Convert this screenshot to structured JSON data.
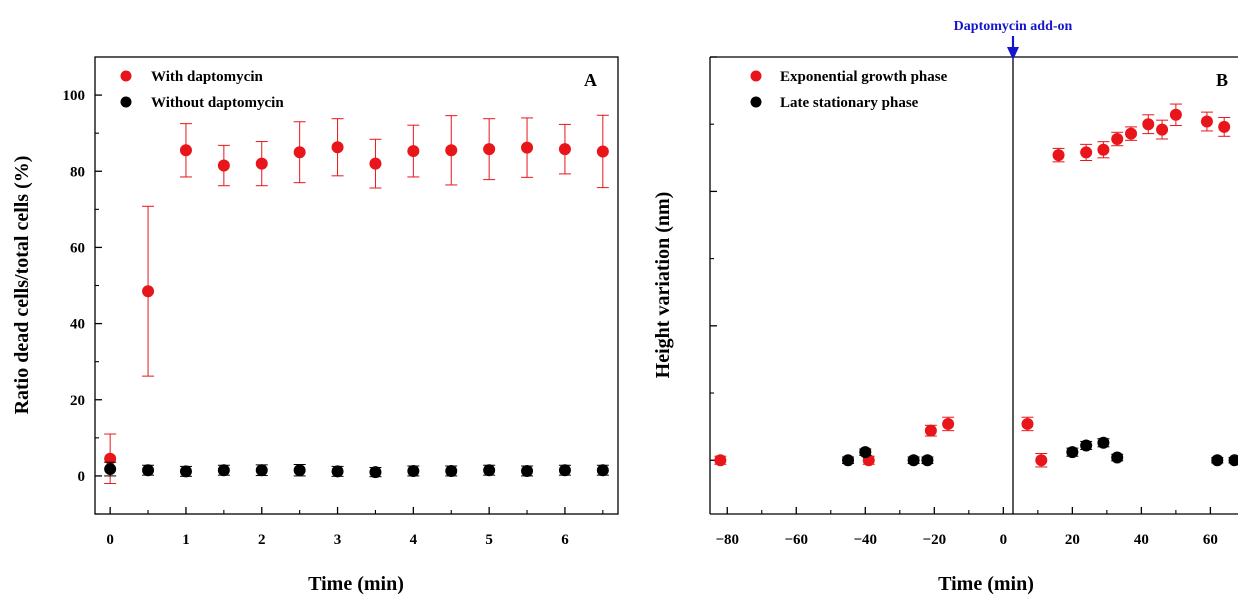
{
  "chart_data": [
    {
      "type": "scatter",
      "panel_label": "A",
      "xlabel": "Time (min)",
      "ylabel": "Ratio dead cells/total cells (%)",
      "xlim": [
        -0.2,
        6.7
      ],
      "ylim": [
        -10,
        110
      ],
      "xticks": [
        0,
        1,
        2,
        3,
        4,
        5,
        6
      ],
      "yticks": [
        0,
        20,
        40,
        60,
        80,
        100
      ],
      "legend_position": "top-left",
      "grid": false,
      "series": [
        {
          "name": "With daptomycin",
          "color": "#e8151b",
          "x": [
            0,
            0.5,
            1,
            1.5,
            2,
            2.5,
            3,
            3.5,
            4,
            4.5,
            5,
            5.5,
            6,
            6.5
          ],
          "y": [
            4.5,
            48.5,
            85.5,
            81.5,
            82,
            85,
            86.3,
            82,
            85.3,
            85.5,
            85.8,
            86.2,
            85.8,
            85.2
          ],
          "err": [
            6.5,
            22.3,
            7,
            5.3,
            5.8,
            8,
            7.5,
            6.4,
            6.8,
            9.1,
            8,
            7.8,
            6.5,
            9.5
          ]
        },
        {
          "name": "Without daptomycin",
          "color": "#000000",
          "x": [
            0,
            0.5,
            1,
            1.5,
            2,
            2.5,
            3,
            3.5,
            4,
            4.5,
            5,
            5.5,
            6,
            6.5
          ],
          "y": [
            1.8,
            1.5,
            1.2,
            1.5,
            1.5,
            1.5,
            1.2,
            1,
            1.3,
            1.3,
            1.5,
            1.3,
            1.5,
            1.5
          ],
          "err": [
            1.8,
            1.3,
            1.3,
            1.3,
            1.4,
            1.5,
            1.3,
            1.2,
            1.3,
            1.3,
            1.3,
            1.3,
            1.3,
            1.3
          ]
        }
      ]
    },
    {
      "type": "scatter",
      "panel_label": "B",
      "xlabel": "Time (min)",
      "ylabel": "Height variation (nm)",
      "xlim": [
        -85,
        68
      ],
      "ylim": [
        -2,
        15
      ],
      "xticks": [
        -80,
        -60,
        -40,
        -20,
        0,
        20,
        40,
        60
      ],
      "yticks": [
        0,
        5,
        10,
        15
      ],
      "legend_position": "top-left",
      "grid": false,
      "annotation": {
        "text": "Daptomycin add-on",
        "x": 0,
        "color": "#1515cc"
      },
      "series": [
        {
          "name": "Exponential growth phase",
          "color": "#e8151b",
          "x": [
            -82,
            -39,
            -21,
            -16,
            7,
            11,
            16,
            24,
            29,
            33,
            37,
            42,
            46,
            50,
            59,
            64
          ],
          "y": [
            0,
            0,
            1.1,
            1.35,
            1.35,
            0,
            11.35,
            11.45,
            11.55,
            11.95,
            12.15,
            12.5,
            12.3,
            12.85,
            12.6,
            12.4
          ],
          "err": [
            0.15,
            0.15,
            0.2,
            0.25,
            0.25,
            0.25,
            0.25,
            0.3,
            0.3,
            0.25,
            0.25,
            0.35,
            0.35,
            0.4,
            0.35,
            0.35
          ]
        },
        {
          "name": "Late stationary phase",
          "color": "#000000",
          "x": [
            -45,
            -40,
            -26,
            -22,
            20,
            24,
            29,
            33,
            62,
            67
          ],
          "y": [
            0,
            0.3,
            0,
            0,
            0.3,
            0.55,
            0.65,
            0.1,
            0,
            0
          ],
          "err": [
            0.12,
            0.12,
            0.12,
            0.12,
            0.15,
            0.15,
            0.15,
            0.12,
            0.1,
            0.1
          ]
        }
      ]
    }
  ]
}
